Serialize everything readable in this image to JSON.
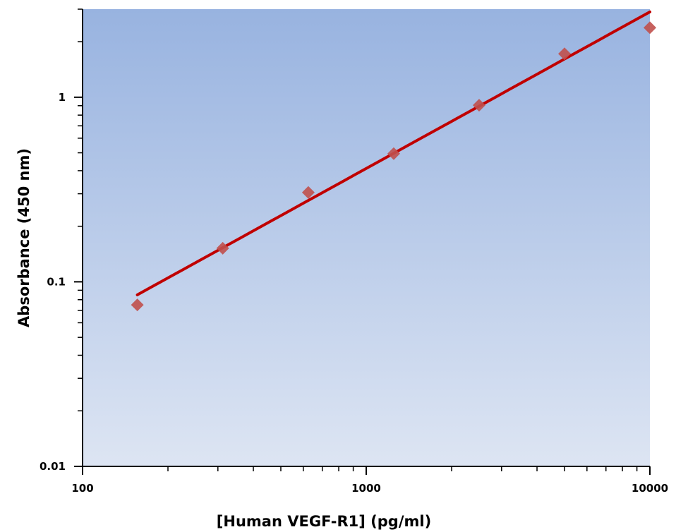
{
  "chart_data": {
    "type": "scatter",
    "title": "",
    "xlabel": "[Human VEGF-R1] (pg/ml)",
    "ylabel": "Absorbance (450 nm)",
    "x_scale": "log",
    "y_scale": "log",
    "xlim": [
      100,
      10000
    ],
    "ylim": [
      0.01,
      3
    ],
    "x_ticks": [
      100,
      1000,
      10000
    ],
    "x_tick_labels": [
      "100",
      "1000",
      "10000"
    ],
    "y_ticks": [
      0.01,
      0.1,
      1
    ],
    "y_tick_labels": [
      "0.01",
      "0.1",
      "1"
    ],
    "grid": false,
    "legend": "none",
    "background_gradient": [
      "#98B3E0",
      "#DDE5F3"
    ],
    "series": [
      {
        "kind": "points",
        "color": "#C0504D",
        "marker": "diamond",
        "x": [
          156,
          312,
          625,
          1250,
          2500,
          5000,
          10000
        ],
        "y": [
          0.075,
          0.152,
          0.305,
          0.495,
          0.905,
          1.72,
          2.38
        ]
      },
      {
        "kind": "fit-line",
        "color": "#C00000",
        "x": [
          156,
          10000
        ],
        "y": [
          0.085,
          2.9
        ]
      }
    ]
  }
}
